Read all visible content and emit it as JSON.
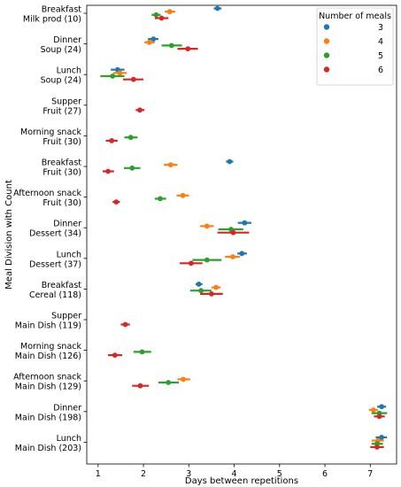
{
  "chart_data": {
    "type": "scatter",
    "xlabel": "Days between repetitions",
    "ylabel": "Meal Division with Count",
    "xlim": [
      0.75,
      7.58
    ],
    "xticks": [
      1,
      2,
      3,
      4,
      5,
      6,
      7
    ],
    "grid": false,
    "legend": {
      "title": "Number of meals",
      "placement": "top-right"
    },
    "categories": [
      [
        "Breakfast",
        "Milk prod (10)"
      ],
      [
        "Dinner",
        "Soup (24)"
      ],
      [
        "Lunch",
        "Soup (24)"
      ],
      [
        "Supper",
        "Fruit (27)"
      ],
      [
        "Morning snack",
        "Fruit (30)"
      ],
      [
        "Breakfast",
        "Fruit (30)"
      ],
      [
        "Afternoon snack",
        "Fruit (30)"
      ],
      [
        "Dinner",
        "Dessert (34)"
      ],
      [
        "Lunch",
        "Dessert (37)"
      ],
      [
        "Breakfast",
        "Cereal (118)"
      ],
      [
        "Supper",
        "Main Dish (119)"
      ],
      [
        "Morning snack",
        "Main Dish (126)"
      ],
      [
        "Afternoon snack",
        "Main Dish (129)"
      ],
      [
        "Dinner",
        "Main Dish (198)"
      ],
      [
        "Lunch",
        "Main Dish (203)"
      ]
    ],
    "series": [
      {
        "name": "3",
        "color": "#1f77b4",
        "points": [
          {
            "cat": 0,
            "x": 3.63,
            "lo": 3.55,
            "hi": 3.72
          },
          {
            "cat": 1,
            "x": 2.22,
            "lo": 2.1,
            "hi": 2.33
          },
          {
            "cat": 2,
            "x": 1.43,
            "lo": 1.28,
            "hi": 1.58
          },
          {
            "cat": 5,
            "x": 3.9,
            "lo": 3.82,
            "hi": 3.98
          },
          {
            "cat": 7,
            "x": 4.23,
            "lo": 4.08,
            "hi": 4.38
          },
          {
            "cat": 8,
            "x": 4.17,
            "lo": 4.07,
            "hi": 4.28
          },
          {
            "cat": 9,
            "x": 3.22,
            "lo": 3.15,
            "hi": 3.3
          },
          {
            "cat": 13,
            "x": 7.25,
            "lo": 7.15,
            "hi": 7.35
          },
          {
            "cat": 14,
            "x": 7.25,
            "lo": 7.12,
            "hi": 7.37
          }
        ]
      },
      {
        "name": "4",
        "color": "#ff7f0e",
        "points": [
          {
            "cat": 0,
            "x": 2.58,
            "lo": 2.47,
            "hi": 2.7
          },
          {
            "cat": 1,
            "x": 2.13,
            "lo": 2.02,
            "hi": 2.25
          },
          {
            "cat": 2,
            "x": 1.48,
            "lo": 1.33,
            "hi": 1.63
          },
          {
            "cat": 5,
            "x": 2.6,
            "lo": 2.45,
            "hi": 2.75
          },
          {
            "cat": 6,
            "x": 2.87,
            "lo": 2.73,
            "hi": 3.0
          },
          {
            "cat": 7,
            "x": 3.4,
            "lo": 3.25,
            "hi": 3.55
          },
          {
            "cat": 8,
            "x": 3.97,
            "lo": 3.8,
            "hi": 4.13
          },
          {
            "cat": 9,
            "x": 3.6,
            "lo": 3.5,
            "hi": 3.7
          },
          {
            "cat": 12,
            "x": 2.88,
            "lo": 2.75,
            "hi": 3.03
          },
          {
            "cat": 13,
            "x": 7.07,
            "lo": 6.97,
            "hi": 7.17
          },
          {
            "cat": 14,
            "x": 7.17,
            "lo": 7.03,
            "hi": 7.3
          }
        ]
      },
      {
        "name": "5",
        "color": "#2ca02c",
        "points": [
          {
            "cat": 0,
            "x": 2.28,
            "lo": 2.18,
            "hi": 2.38
          },
          {
            "cat": 1,
            "x": 2.62,
            "lo": 2.4,
            "hi": 2.85
          },
          {
            "cat": 2,
            "x": 1.32,
            "lo": 1.05,
            "hi": 1.58
          },
          {
            "cat": 4,
            "x": 1.72,
            "lo": 1.58,
            "hi": 1.87
          },
          {
            "cat": 5,
            "x": 1.75,
            "lo": 1.57,
            "hi": 1.93
          },
          {
            "cat": 6,
            "x": 2.37,
            "lo": 2.25,
            "hi": 2.5
          },
          {
            "cat": 7,
            "x": 3.93,
            "lo": 3.65,
            "hi": 4.2
          },
          {
            "cat": 8,
            "x": 3.4,
            "lo": 3.08,
            "hi": 3.72
          },
          {
            "cat": 9,
            "x": 3.27,
            "lo": 3.03,
            "hi": 3.5
          },
          {
            "cat": 11,
            "x": 1.97,
            "lo": 1.78,
            "hi": 2.17
          },
          {
            "cat": 12,
            "x": 2.55,
            "lo": 2.33,
            "hi": 2.78
          },
          {
            "cat": 13,
            "x": 7.2,
            "lo": 7.03,
            "hi": 7.37
          },
          {
            "cat": 14,
            "x": 7.15,
            "lo": 7.03,
            "hi": 7.28
          }
        ]
      },
      {
        "name": "6",
        "color": "#d62728",
        "points": [
          {
            "cat": 0,
            "x": 2.4,
            "lo": 2.25,
            "hi": 2.55
          },
          {
            "cat": 1,
            "x": 2.98,
            "lo": 2.75,
            "hi": 3.2
          },
          {
            "cat": 2,
            "x": 1.78,
            "lo": 1.55,
            "hi": 2.0
          },
          {
            "cat": 3,
            "x": 1.92,
            "lo": 1.83,
            "hi": 2.02
          },
          {
            "cat": 4,
            "x": 1.3,
            "lo": 1.17,
            "hi": 1.43
          },
          {
            "cat": 5,
            "x": 1.22,
            "lo": 1.1,
            "hi": 1.35
          },
          {
            "cat": 6,
            "x": 1.4,
            "lo": 1.32,
            "hi": 1.48
          },
          {
            "cat": 7,
            "x": 3.98,
            "lo": 3.63,
            "hi": 4.33
          },
          {
            "cat": 8,
            "x": 3.05,
            "lo": 2.8,
            "hi": 3.3
          },
          {
            "cat": 9,
            "x": 3.5,
            "lo": 3.25,
            "hi": 3.75
          },
          {
            "cat": 10,
            "x": 1.6,
            "lo": 1.5,
            "hi": 1.7
          },
          {
            "cat": 11,
            "x": 1.37,
            "lo": 1.22,
            "hi": 1.53
          },
          {
            "cat": 12,
            "x": 1.93,
            "lo": 1.75,
            "hi": 2.12
          },
          {
            "cat": 13,
            "x": 7.2,
            "lo": 7.08,
            "hi": 7.32
          },
          {
            "cat": 14,
            "x": 7.15,
            "lo": 7.0,
            "hi": 7.3
          }
        ]
      }
    ]
  }
}
